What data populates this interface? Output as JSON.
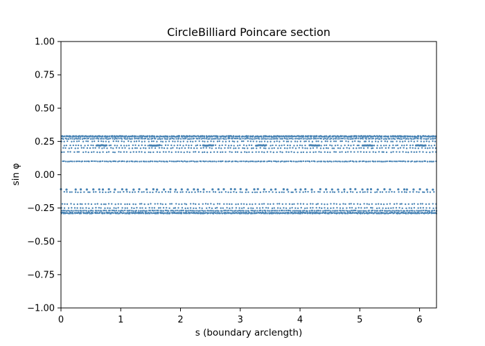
{
  "chart_data": {
    "type": "scatter",
    "title": "CircleBilliard Poincare section",
    "xlabel": "s (boundary arclength)",
    "ylabel": "sin φ",
    "xlim": [
      0,
      6.2832
    ],
    "ylim": [
      -1.0,
      1.0
    ],
    "xticks": [
      0,
      1,
      2,
      3,
      4,
      5,
      6
    ],
    "xtick_labels": [
      "0",
      "1",
      "2",
      "3",
      "4",
      "5",
      "6"
    ],
    "yticks": [
      -1.0,
      -0.75,
      -0.5,
      -0.25,
      0.0,
      0.25,
      0.5,
      0.75,
      1.0
    ],
    "ytick_labels": [
      "−1.00",
      "−0.75",
      "−0.50",
      "−0.25",
      "0.00",
      "0.25",
      "0.50",
      "0.75",
      "1.00"
    ],
    "grid": false,
    "marker_color": "#4682b4",
    "bands": [
      {
        "y": 0.29,
        "density": "dense"
      },
      {
        "y": 0.285,
        "density": "dense"
      },
      {
        "y": 0.27,
        "density": "dense"
      },
      {
        "y": 0.25,
        "density": "medium"
      },
      {
        "y": 0.22,
        "density": "medium"
      },
      {
        "y": 0.2,
        "density": "medium"
      },
      {
        "y": 0.17,
        "density": "medium"
      },
      {
        "y": 0.1,
        "density": "dense"
      },
      {
        "y": -0.11,
        "density": "sparse"
      },
      {
        "y": -0.13,
        "density": "medium"
      },
      {
        "y": -0.22,
        "density": "medium"
      },
      {
        "y": -0.25,
        "density": "medium"
      },
      {
        "y": -0.27,
        "density": "dense"
      },
      {
        "y": -0.285,
        "density": "dense"
      },
      {
        "y": -0.29,
        "density": "dense"
      }
    ],
    "clusters": [
      {
        "y": 0.22,
        "x": [
          0.68,
          1.57,
          2.46,
          3.35,
          4.24,
          5.13,
          6.02
        ]
      }
    ]
  }
}
